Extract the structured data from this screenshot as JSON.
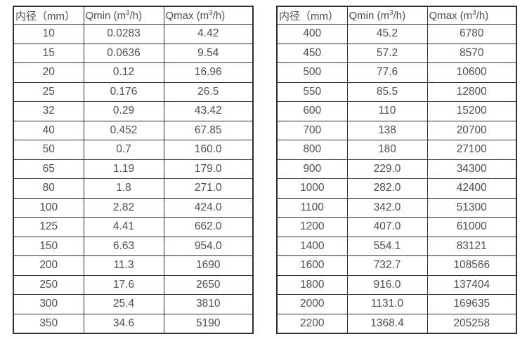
{
  "page": {
    "background_color": "#ffffff",
    "text_color": "#4f4f4f",
    "border_color": "#2e2e2e"
  },
  "tables": [
    {
      "name": "flow-spec-table-small-diameters",
      "headers": [
        "内径（mm）",
        "Qmin (m³/h)",
        "Qmax (m³/h)"
      ],
      "rows": [
        [
          "10",
          "0.0283",
          "4.42"
        ],
        [
          "15",
          "0.0636",
          "9.54"
        ],
        [
          "20",
          "0.12",
          "16.96"
        ],
        [
          "25",
          "0.176",
          "26.5"
        ],
        [
          "32",
          "0.29",
          "43.42"
        ],
        [
          "40",
          "0.452",
          "67.85"
        ],
        [
          "50",
          "0.7",
          "160.0"
        ],
        [
          "65",
          "1.19",
          "179.0"
        ],
        [
          "80",
          "1.8",
          "271.0"
        ],
        [
          "100",
          "2.82",
          "424.0"
        ],
        [
          "125",
          "4.41",
          "662.0"
        ],
        [
          "150",
          "6.63",
          "954.0"
        ],
        [
          "200",
          "11.3",
          "1690"
        ],
        [
          "250",
          "17.6",
          "2650"
        ],
        [
          "300",
          "25.4",
          "3810"
        ],
        [
          "350",
          "34.6",
          "5190"
        ]
      ]
    },
    {
      "name": "flow-spec-table-large-diameters",
      "headers": [
        "内径（mm）",
        "Qmin (m³/h)",
        "Qmax (m³/h)"
      ],
      "rows": [
        [
          "400",
          "45.2",
          "6780"
        ],
        [
          "450",
          "57.2",
          "8570"
        ],
        [
          "500",
          "77.6",
          "10600"
        ],
        [
          "550",
          "85.5",
          "12800"
        ],
        [
          "600",
          "110",
          "15200"
        ],
        [
          "700",
          "138",
          "20700"
        ],
        [
          "800",
          "180",
          "27100"
        ],
        [
          "900",
          "229.0",
          "34300"
        ],
        [
          "1000",
          "282.0",
          "42400"
        ],
        [
          "1100",
          "342.0",
          "51300"
        ],
        [
          "1200",
          "407.0",
          "61000"
        ],
        [
          "1400",
          "554.1",
          "83121"
        ],
        [
          "1600",
          "732.7",
          "108566"
        ],
        [
          "1800",
          "916.0",
          "137404"
        ],
        [
          "2000",
          "1131.0",
          "169635"
        ],
        [
          "2200",
          "1368.4",
          "205258"
        ]
      ]
    }
  ],
  "column_semantics": [
    "diameter",
    "qmin",
    "qmax"
  ]
}
